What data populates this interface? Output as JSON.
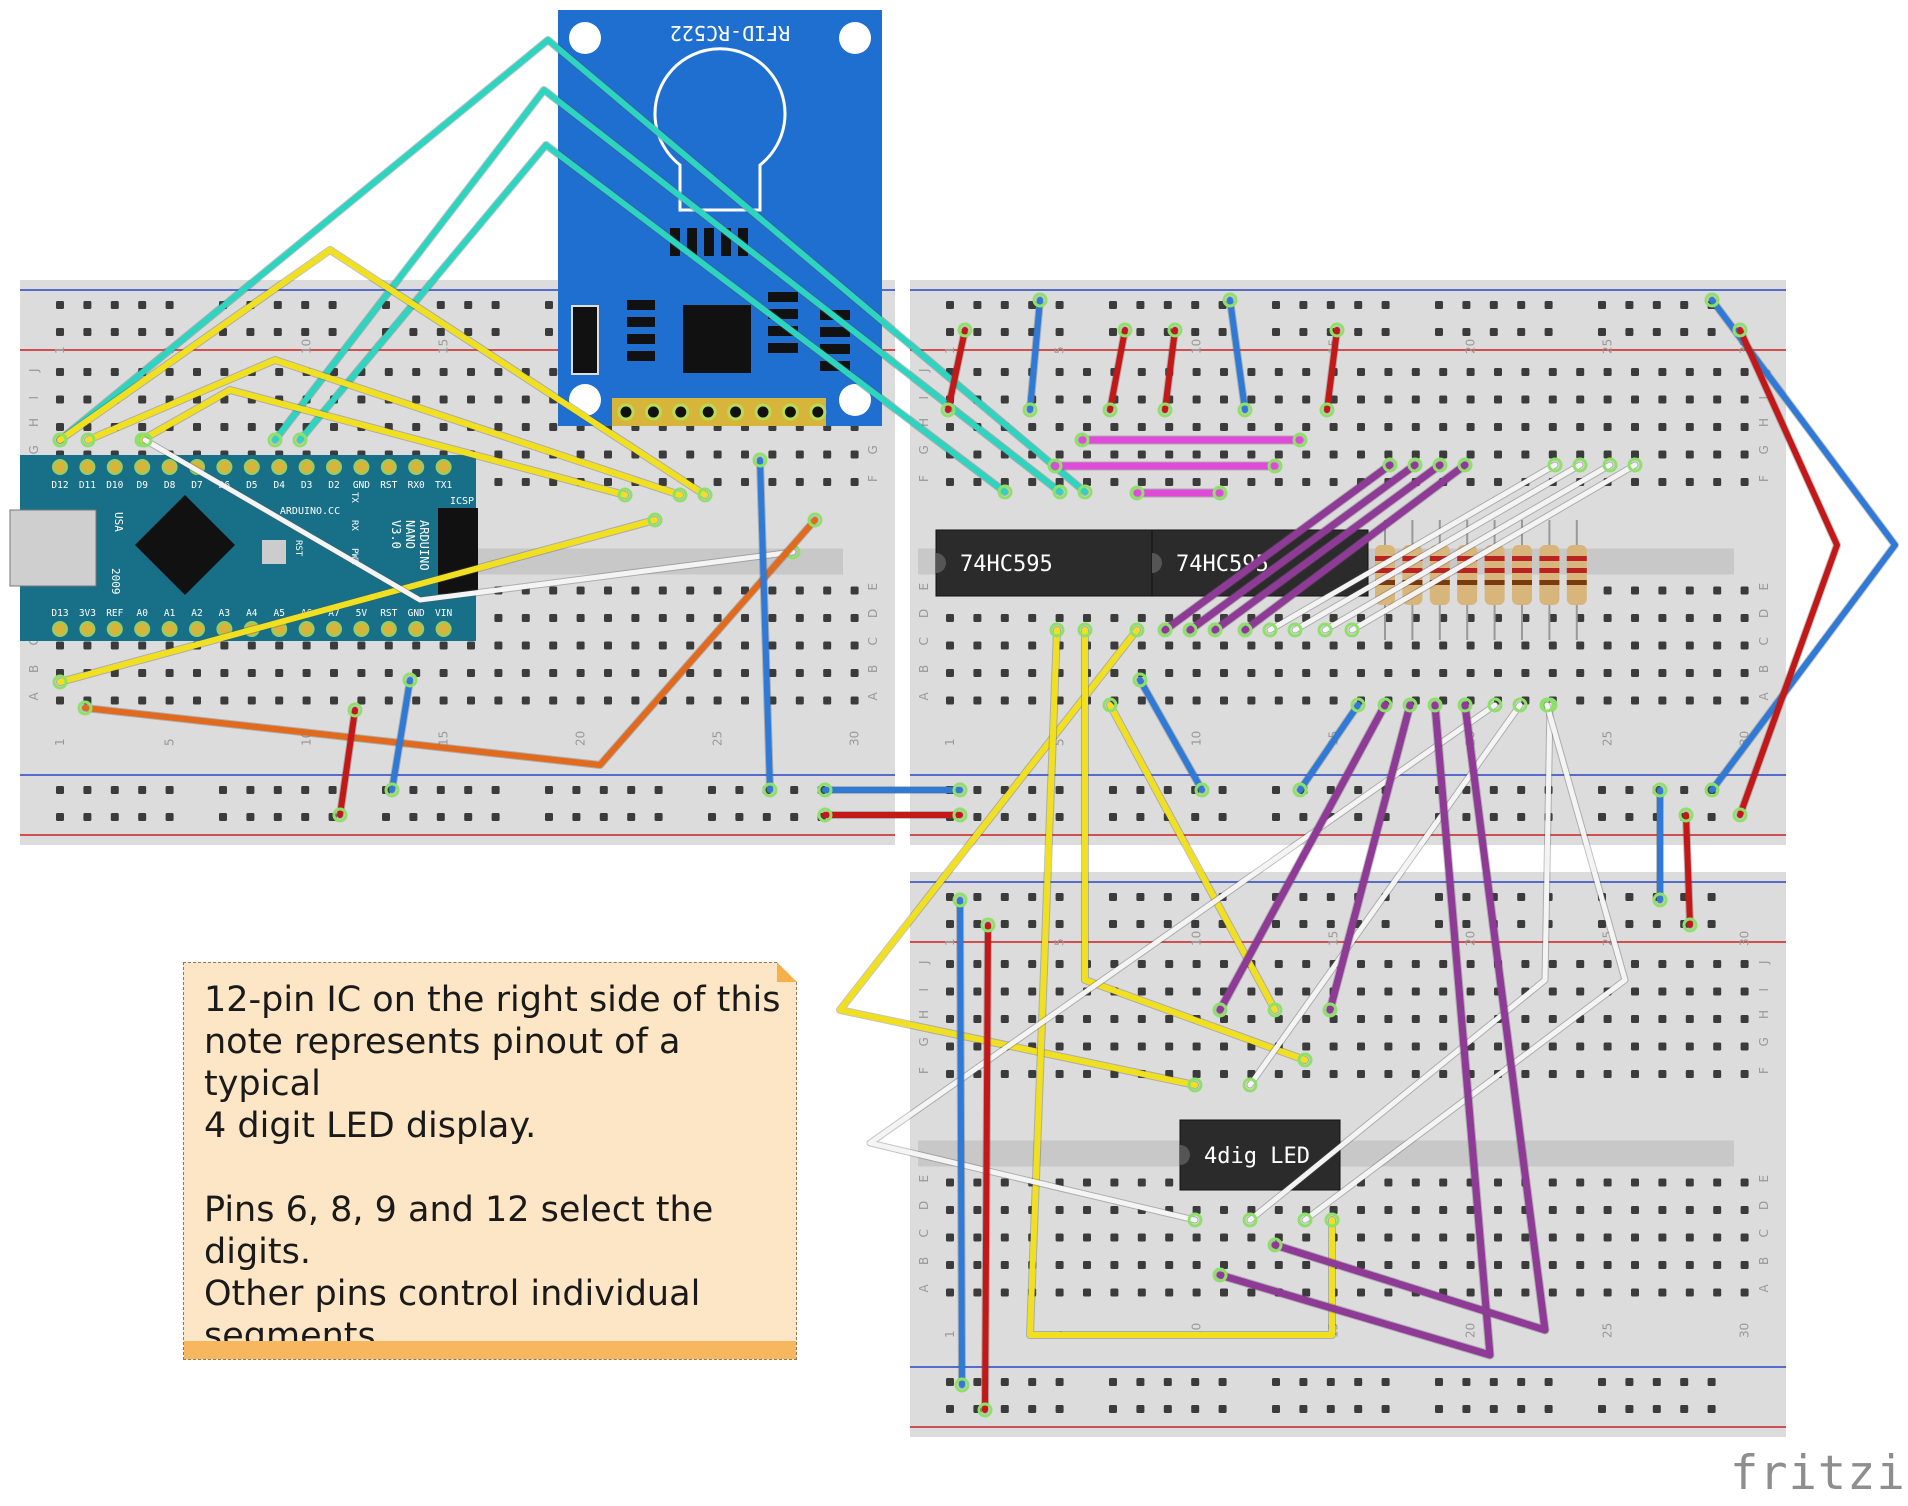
{
  "components": {
    "rfid": {
      "label": "RFID-RC522"
    },
    "nano": {
      "top_pins": [
        "D12",
        "D11",
        "D10",
        "D9",
        "D8",
        "D7",
        "D6",
        "D5",
        "D4",
        "D3",
        "D2",
        "GND",
        "RST",
        "RX0",
        "TX1"
      ],
      "bottom_pins": [
        "D13",
        "3V3",
        "REF",
        "A0",
        "A1",
        "A2",
        "A3",
        "A4",
        "A5",
        "A6",
        "A7",
        "5V",
        "RST",
        "GND",
        "VIN"
      ],
      "labels": [
        "ARDUINO",
        "NANO",
        "V3.0"
      ],
      "brand": "ARDUINO.CC",
      "icsp": "ICSP",
      "usa": "USA",
      "year": "2009",
      "tx": "TX",
      "rx": "RX",
      "pwr": "PWR",
      "rst": "RST"
    },
    "ic1": {
      "label": "74HC595"
    },
    "ic2": {
      "label": "74HC595"
    },
    "display": {
      "label": "4dig LED"
    }
  },
  "breadboard_rows": [
    "J",
    "I",
    "H",
    "G",
    "F",
    "E",
    "D",
    "C",
    "B",
    "A"
  ],
  "breadboard_cols": [
    "1",
    "5",
    "10",
    "15",
    "20",
    "25",
    "30"
  ],
  "note": {
    "text": "12-pin IC on the right side of this\nnote represents pinout of a typical\n4 digit LED display.\n\nPins 6, 8, 9 and 12 select the digits.\nOther pins control individual\nsegments."
  },
  "logo": "fritzing",
  "colors": {
    "yellow": "#f0e020",
    "cyan": "#2dd4c0",
    "white": "#f4f4f4",
    "orange": "#e26a1c",
    "blue": "#2f7ad6",
    "red": "#c41818",
    "purple": "#8e3a96",
    "magenta": "#e04ad8",
    "rfid_board": "#1f6fd0",
    "nano_board": "#187088"
  }
}
